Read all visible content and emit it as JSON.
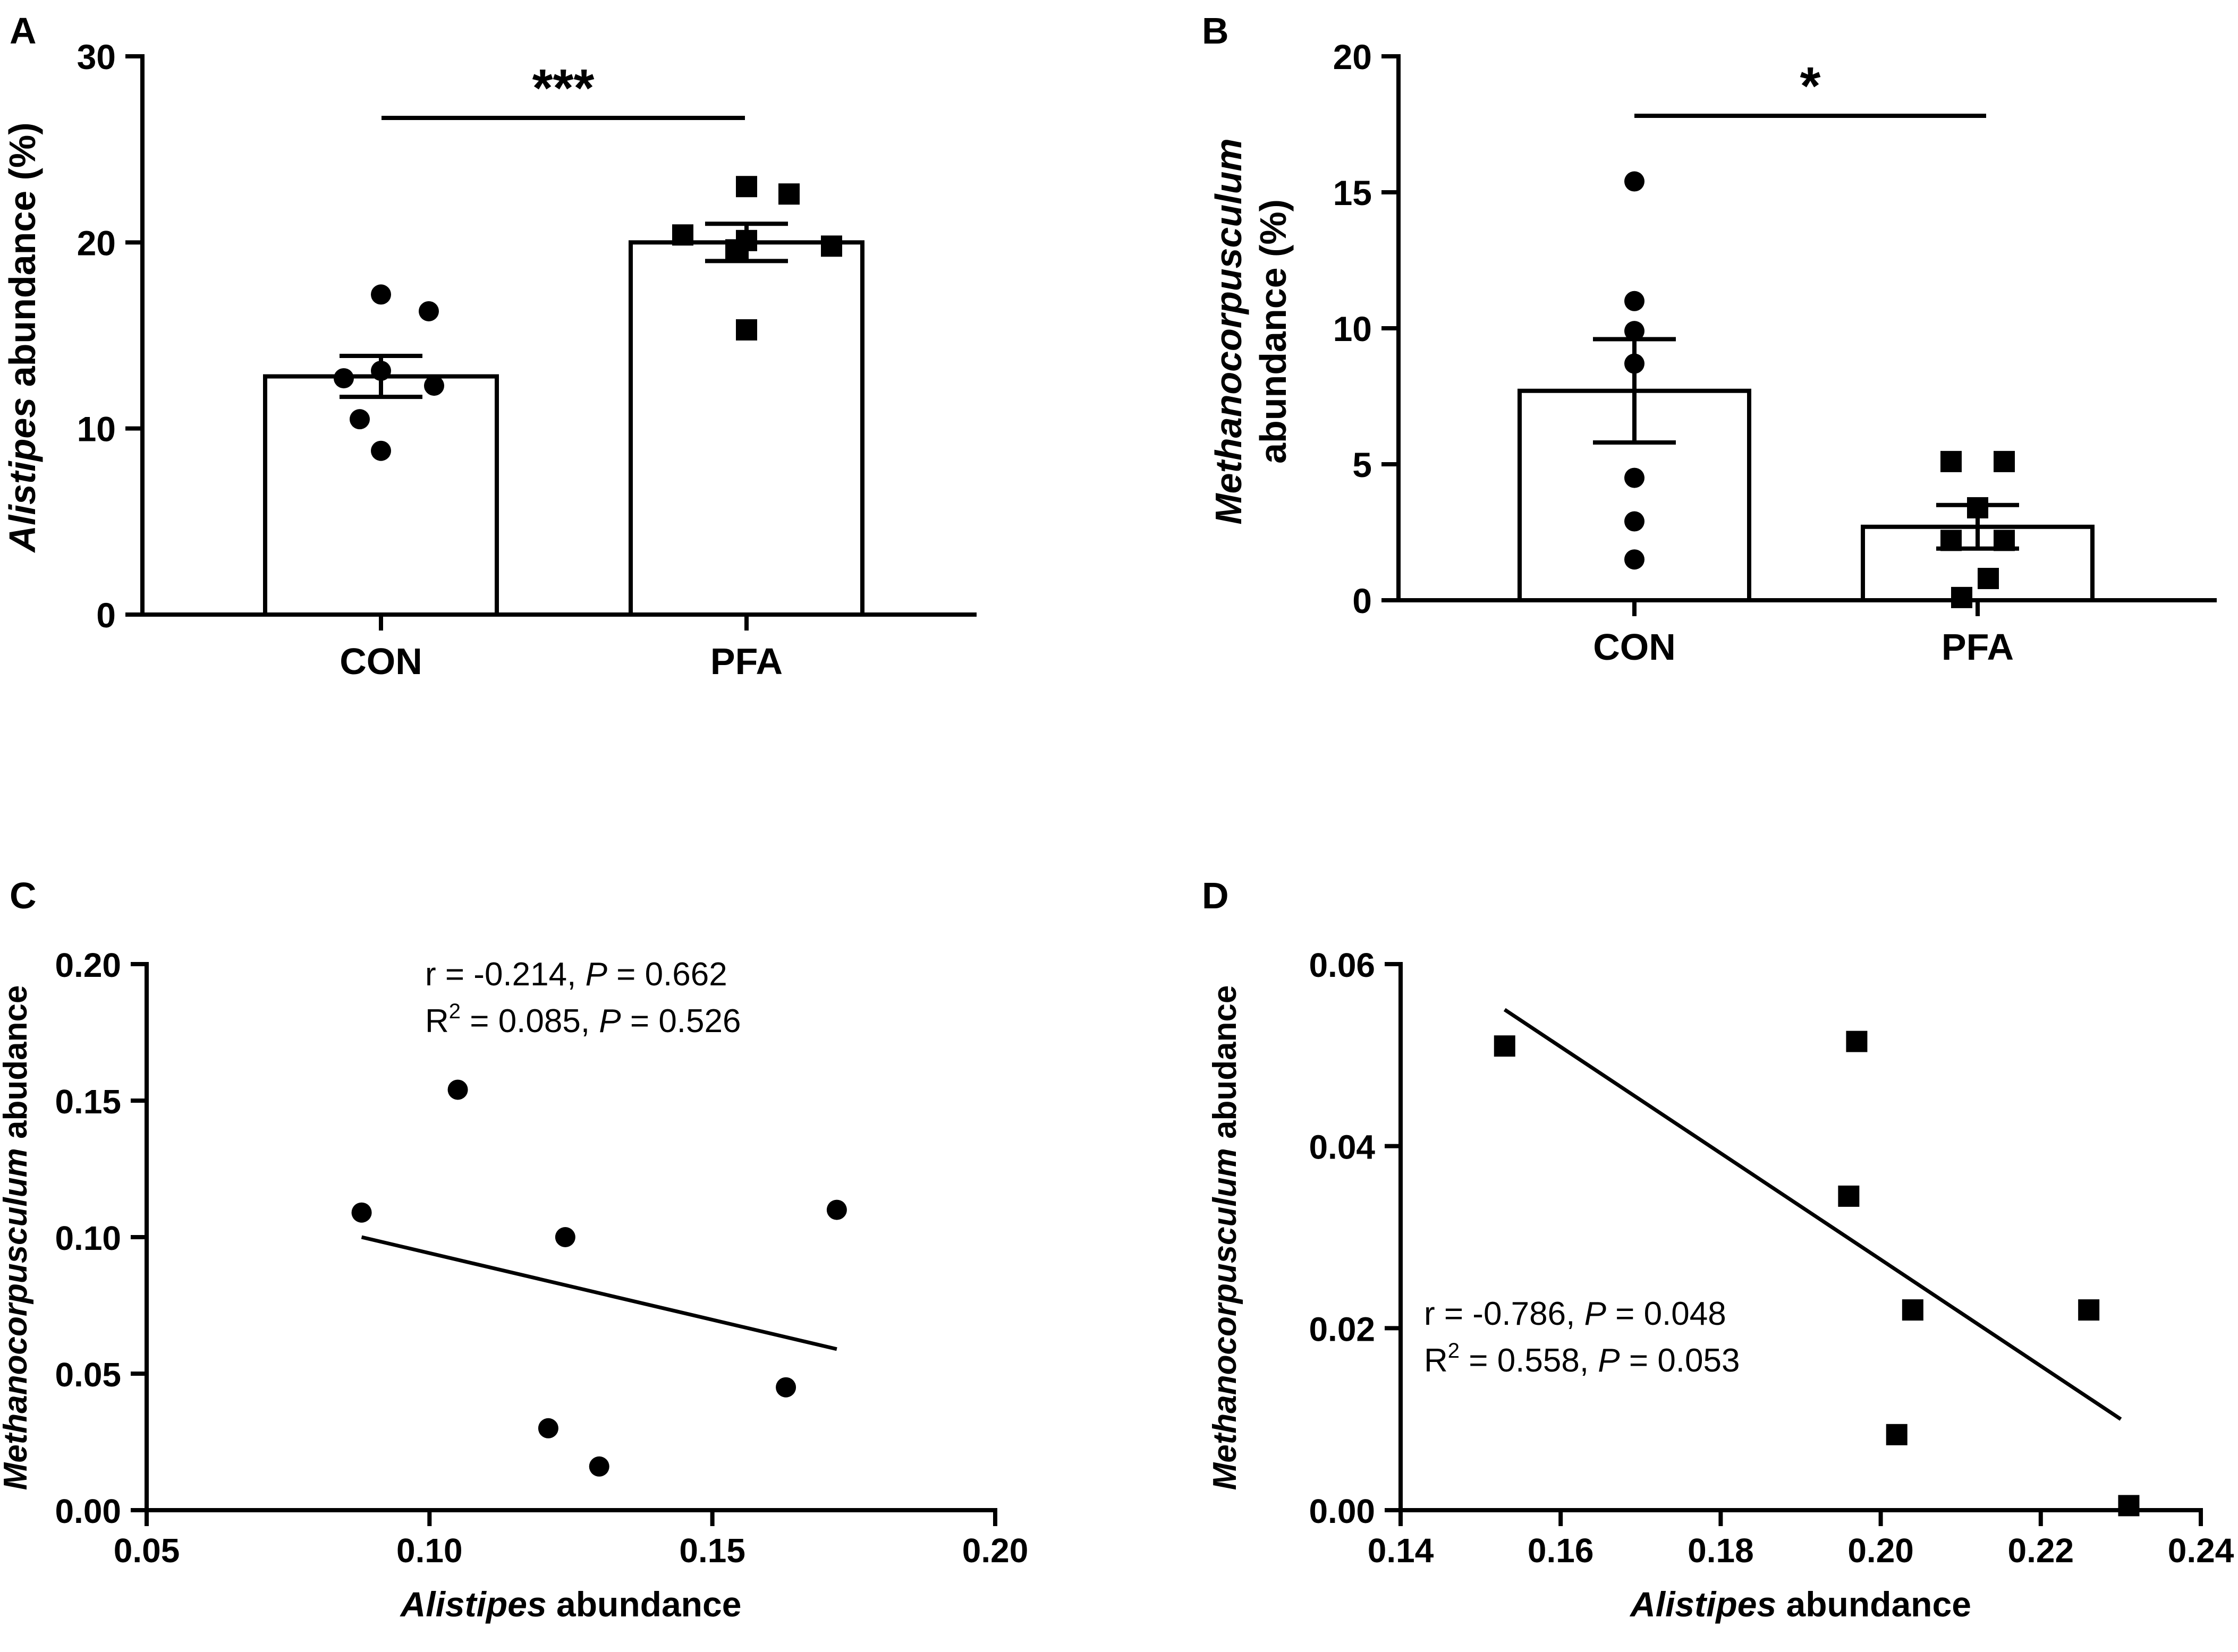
{
  "figure": {
    "panels": [
      {
        "id": "A"
      },
      {
        "id": "B"
      },
      {
        "id": "C"
      },
      {
        "id": "D"
      }
    ]
  },
  "chart_data": [
    {
      "panel": "A",
      "type": "bar",
      "categories": [
        "CON",
        "PFA"
      ],
      "means": [
        12.8,
        20.0
      ],
      "sem": [
        1.1,
        1.0
      ],
      "points": {
        "CON": [
          17.2,
          16.3,
          13.1,
          12.7,
          12.3,
          10.5,
          8.8
        ],
        "PFA": [
          23.0,
          22.6,
          20.4,
          20.1,
          19.8,
          19.6,
          15.3
        ]
      },
      "point_marker": {
        "CON": "circle",
        "PFA": "square"
      },
      "ylim": [
        0,
        30
      ],
      "yticks": [
        "0",
        "10",
        "20",
        "30"
      ],
      "ylabel_italic": "Alistipes",
      "ylabel_rest": " abundance (%)",
      "xlabel": "",
      "significance": "***"
    },
    {
      "panel": "B",
      "type": "bar",
      "categories": [
        "CON",
        "PFA"
      ],
      "means": [
        7.7,
        2.7
      ],
      "sem": [
        1.9,
        0.8
      ],
      "points": {
        "CON": [
          15.4,
          11.0,
          9.9,
          8.7,
          4.5,
          2.9,
          1.5
        ],
        "PFA": [
          5.1,
          5.1,
          3.4,
          2.2,
          2.2,
          0.8,
          0.1
        ]
      },
      "point_marker": {
        "CON": "circle",
        "PFA": "square"
      },
      "ylim": [
        0,
        20
      ],
      "yticks": [
        "0",
        "5",
        "10",
        "15",
        "20"
      ],
      "ylabel_italic": "Methanocorpusculum",
      "ylabel_rest": "abundance (%)",
      "xlabel": "",
      "significance": "*"
    },
    {
      "panel": "C",
      "type": "scatter",
      "marker": "circle",
      "x": [
        0.088,
        0.105,
        0.124,
        0.121,
        0.13,
        0.163,
        0.172
      ],
      "y": [
        0.109,
        0.154,
        0.1,
        0.03,
        0.016,
        0.045,
        0.11
      ],
      "fit": {
        "x": [
          0.088,
          0.172
        ],
        "y": [
          0.1,
          0.059
        ]
      },
      "xlim": [
        0.05,
        0.2
      ],
      "ylim": [
        0.0,
        0.2
      ],
      "xticks": [
        "0.05",
        "0.10",
        "0.15",
        "0.20"
      ],
      "yticks": [
        "0.00",
        "0.05",
        "0.10",
        "0.15",
        "0.20"
      ],
      "xlabel_italic": "Alistipes",
      "xlabel_rest": " abundance",
      "ylabel_italic": "Methanocorpusculum",
      "ylabel_rest": " abudance",
      "annotation": {
        "line1": {
          "pre": "r = -0.214, ",
          "p": "P",
          "post": " = 0.662"
        },
        "line2": {
          "R": "R",
          "sup": "2",
          "mid": " = 0.085, ",
          "p": "P",
          "post": " = 0.526"
        }
      }
    },
    {
      "panel": "D",
      "type": "scatter",
      "marker": "square",
      "x": [
        0.153,
        0.197,
        0.196,
        0.204,
        0.202,
        0.226,
        0.231
      ],
      "y": [
        0.051,
        0.0515,
        0.0345,
        0.022,
        0.0083,
        0.022,
        0.0005
      ],
      "fit": {
        "x": [
          0.153,
          0.23
        ],
        "y": [
          0.055,
          0.01
        ]
      },
      "xlim": [
        0.14,
        0.24
      ],
      "ylim": [
        0.0,
        0.06
      ],
      "xticks": [
        "0.14",
        "0.16",
        "0.18",
        "0.20",
        "0.22",
        "0.24"
      ],
      "yticks": [
        "0.00",
        "0.02",
        "0.04",
        "0.06"
      ],
      "xlabel_italic": "Alistipes",
      "xlabel_rest": " abundance",
      "ylabel_italic": "Methanocorpusculum",
      "ylabel_rest": " abudance",
      "annotation": {
        "line1": {
          "pre": "r = -0.786, ",
          "p": "P",
          "post": " = 0.048"
        },
        "line2": {
          "R": "R",
          "sup": "2",
          "mid": " = 0.558, ",
          "p": "P",
          "post": " = 0.053"
        }
      }
    }
  ]
}
